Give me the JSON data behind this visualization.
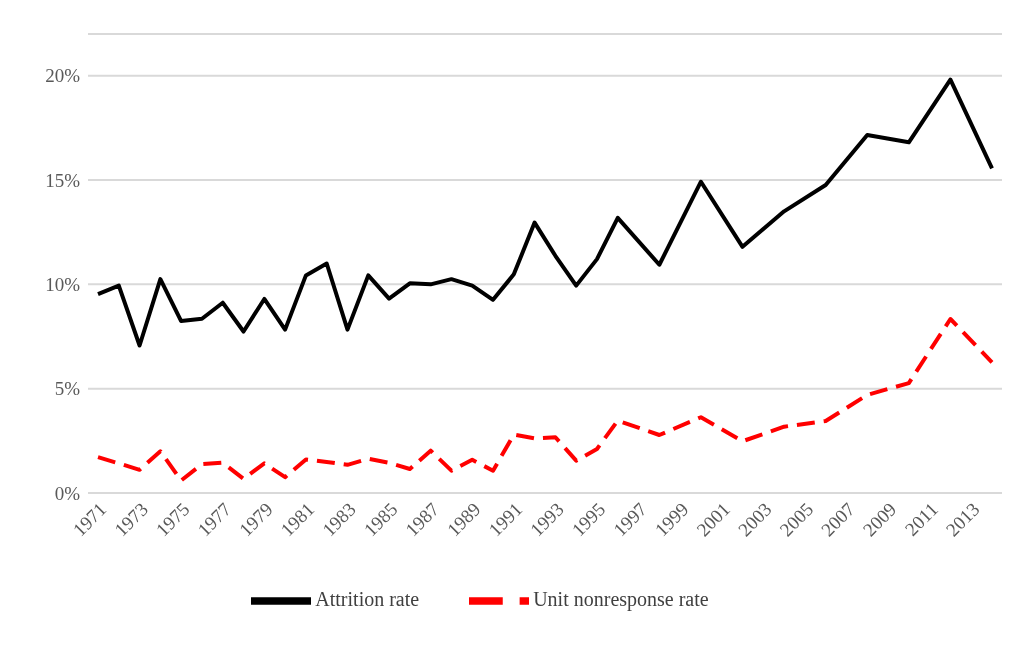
{
  "chart_data": {
    "type": "line",
    "categories": [
      "1971",
      null,
      "1973",
      null,
      "1975",
      null,
      "1977",
      null,
      "1979",
      null,
      "1981",
      null,
      "1983",
      null,
      "1985",
      null,
      "1987",
      null,
      "1989",
      null,
      "1991",
      null,
      "1993",
      null,
      "1995",
      null,
      "1997",
      null,
      "1999",
      null,
      "2001",
      null,
      "2003",
      null,
      "2005",
      null,
      "2007",
      null,
      "2009",
      null,
      "2011",
      null,
      "2013",
      null
    ],
    "series": [
      {
        "name": "Attrition rate",
        "color": "#000000",
        "line_style": "solid",
        "values": [
          9.53,
          9.94,
          7.07,
          10.25,
          8.24,
          8.35,
          9.12,
          7.74,
          9.3,
          7.83,
          10.43,
          11.0,
          7.83,
          10.43,
          9.32,
          10.05,
          10.0,
          10.25,
          9.94,
          9.26,
          10.48,
          12.96,
          11.37,
          9.94,
          11.21,
          13.19,
          null,
          10.94,
          null,
          14.92,
          null,
          11.8,
          null,
          13.5,
          null,
          14.76,
          null,
          17.16,
          null,
          16.81,
          null,
          19.81,
          null,
          15.56
        ]
      },
      {
        "name": "Unit nonresponse rate",
        "color": "#ff0000",
        "line_style": "dashed",
        "values": [
          1.72,
          1.42,
          1.11,
          2.0,
          0.6,
          1.38,
          1.45,
          0.68,
          1.42,
          0.76,
          1.61,
          1.49,
          1.35,
          1.64,
          1.45,
          1.15,
          2.03,
          1.07,
          1.59,
          1.07,
          2.8,
          2.62,
          2.67,
          1.55,
          2.11,
          3.47,
          null,
          2.78,
          null,
          3.63,
          null,
          2.48,
          null,
          3.18,
          null,
          3.45,
          null,
          4.7,
          null,
          5.27,
          null,
          8.34,
          null,
          6.26
        ]
      }
    ],
    "ylim": [
      0,
      22
    ],
    "yticks": [
      {
        "value": 0,
        "label": "0%"
      },
      {
        "value": 5,
        "label": "5%"
      },
      {
        "value": 10,
        "label": "10%"
      },
      {
        "value": 15,
        "label": "15%"
      },
      {
        "value": 20,
        "label": "20%"
      }
    ],
    "grid": "y",
    "legend": "bottom",
    "marker": "none"
  }
}
